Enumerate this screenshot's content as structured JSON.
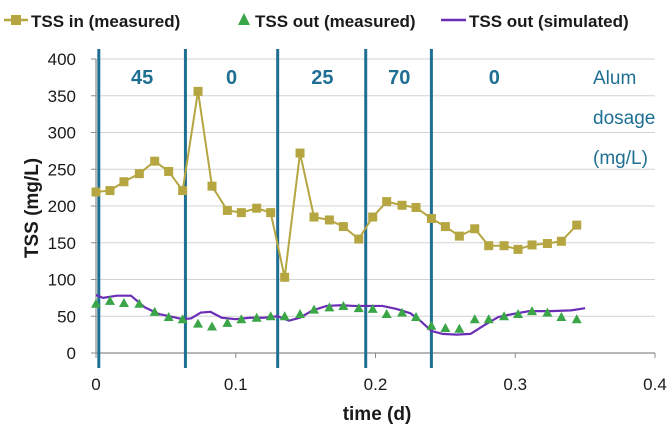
{
  "chart_data": {
    "type": "line",
    "xlabel": "time (d)",
    "ylabel": "TSS (mg/L)",
    "xlim": [
      0,
      0.4
    ],
    "ylim": [
      0,
      400
    ],
    "x_ticks": [
      0,
      0.1,
      0.2,
      0.3,
      0.4
    ],
    "y_ticks": [
      0,
      50,
      100,
      150,
      200,
      250,
      300,
      350,
      400
    ],
    "x_tick_labels": [
      "0",
      "0.1",
      "0.2",
      "0.3",
      "0.4"
    ],
    "y_tick_labels": [
      "0",
      "50",
      "100",
      "150",
      "200",
      "250",
      "300",
      "350",
      "400"
    ],
    "grid": "horizontal",
    "legend_position": "top",
    "series": [
      {
        "name": "TSS in (measured)",
        "style": "line-square-markers",
        "color": "#b5a642",
        "x": [
          0,
          0.01,
          0.02,
          0.031,
          0.042,
          0.052,
          0.062,
          0.073,
          0.083,
          0.094,
          0.104,
          0.115,
          0.125,
          0.135,
          0.146,
          0.156,
          0.167,
          0.177,
          0.188,
          0.198,
          0.208,
          0.219,
          0.229,
          0.24,
          0.25,
          0.26,
          0.271,
          0.281,
          0.292,
          0.302,
          0.312,
          0.323,
          0.333,
          0.344
        ],
        "y": [
          219,
          221,
          233,
          244,
          261,
          247,
          221,
          356,
          227,
          194,
          191,
          197,
          191,
          103,
          272,
          185,
          181,
          172,
          155,
          185,
          206,
          201,
          198,
          183,
          172,
          159,
          169,
          146,
          146,
          141,
          147,
          149,
          152,
          174
        ]
      },
      {
        "name": "TSS out (measured)",
        "style": "triangle-markers",
        "color": "#3aa648",
        "x": [
          0,
          0.01,
          0.02,
          0.031,
          0.042,
          0.052,
          0.062,
          0.073,
          0.083,
          0.094,
          0.104,
          0.115,
          0.125,
          0.135,
          0.146,
          0.156,
          0.167,
          0.177,
          0.188,
          0.198,
          0.208,
          0.219,
          0.229,
          0.24,
          0.25,
          0.26,
          0.271,
          0.281,
          0.292,
          0.302,
          0.312,
          0.323,
          0.333,
          0.344
        ],
        "y": [
          67,
          71,
          68,
          67,
          56,
          49,
          46,
          40,
          36,
          41,
          46,
          48,
          50,
          50,
          53,
          59,
          62,
          64,
          61,
          60,
          53,
          55,
          49,
          37,
          34,
          33,
          46,
          46,
          50,
          53,
          57,
          55,
          49,
          46
        ]
      },
      {
        "name": "TSS out (simulated)",
        "style": "line",
        "color": "#6a2fb5",
        "x": [
          0,
          0.005,
          0.015,
          0.025,
          0.035,
          0.045,
          0.055,
          0.062,
          0.068,
          0.075,
          0.082,
          0.09,
          0.1,
          0.11,
          0.12,
          0.13,
          0.138,
          0.146,
          0.155,
          0.165,
          0.175,
          0.185,
          0.195,
          0.205,
          0.215,
          0.225,
          0.232,
          0.24,
          0.248,
          0.258,
          0.268,
          0.278,
          0.288,
          0.298,
          0.31,
          0.325,
          0.34,
          0.35
        ],
        "y": [
          79,
          75,
          78,
          78,
          62,
          53,
          49,
          46,
          47,
          55,
          56,
          48,
          46,
          48,
          48,
          50,
          44,
          48,
          58,
          64,
          65,
          64,
          64,
          64,
          60,
          54,
          44,
          30,
          26,
          25,
          26,
          38,
          49,
          53,
          57,
          57,
          58,
          61
        ]
      }
    ],
    "vertical_lines": [
      0.002,
      0.064,
      0.13,
      0.193,
      0.24
    ],
    "segments": [
      {
        "label": "45",
        "x_center": 0.033
      },
      {
        "label": "0",
        "x_center": 0.097
      },
      {
        "label": "25",
        "x_center": 0.162
      },
      {
        "label": "70",
        "x_center": 0.217
      },
      {
        "label": "0",
        "x_center": 0.285
      }
    ],
    "annotation": [
      "Alum",
      "dosage",
      "(mg/L)"
    ]
  }
}
